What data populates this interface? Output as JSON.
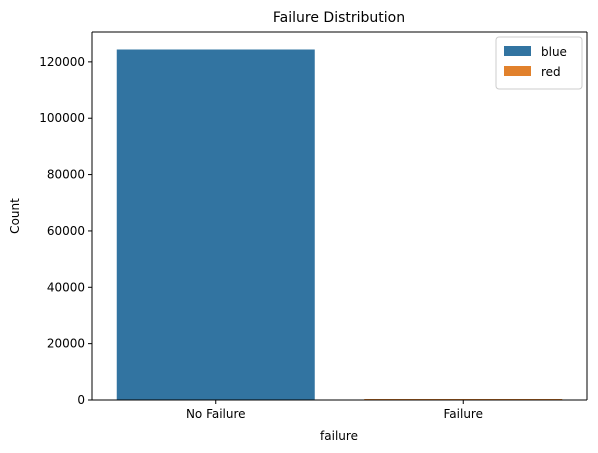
{
  "chart_data": {
    "type": "bar",
    "title": "Failure Distribution",
    "xlabel": "failure",
    "ylabel": "Count",
    "categories": [
      "No Failure",
      "Failure"
    ],
    "series": [
      {
        "name": "blue",
        "color": "#3274a1",
        "values": [
          124388,
          0
        ]
      },
      {
        "name": "red",
        "color": "#e1812c",
        "values": [
          0,
          106
        ]
      }
    ],
    "ylim": [
      0,
      130600
    ],
    "yticks": [
      0,
      20000,
      40000,
      60000,
      80000,
      100000,
      120000
    ],
    "grid": false,
    "legend_position": "top-right"
  }
}
